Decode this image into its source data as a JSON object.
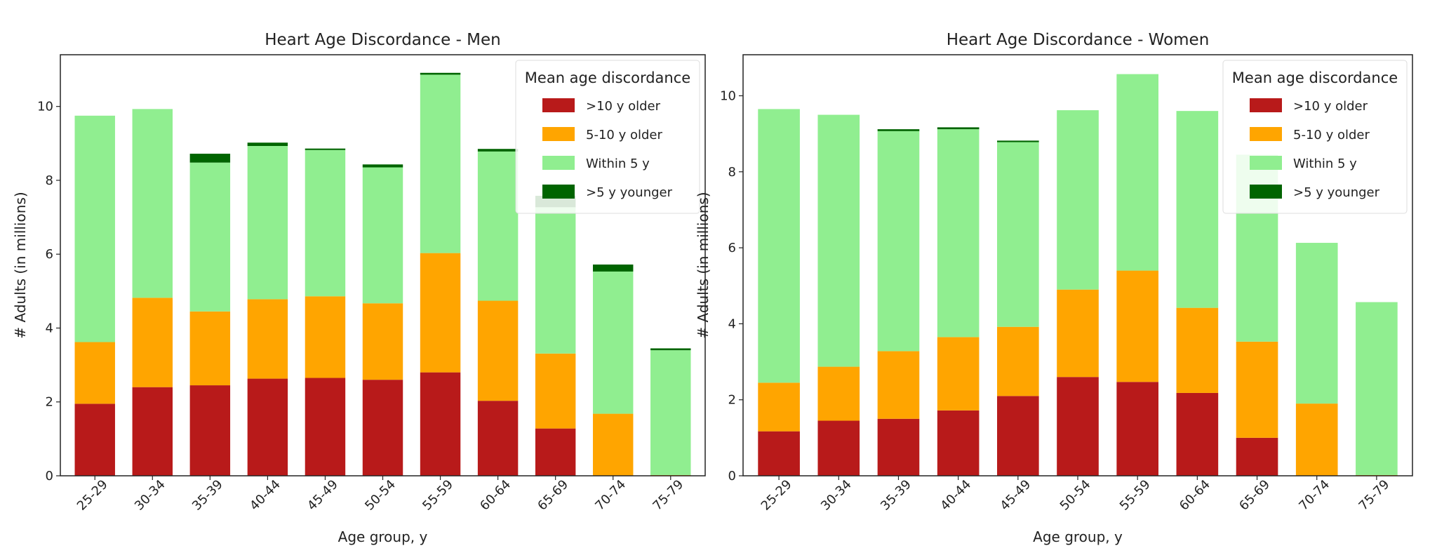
{
  "chart_data": [
    {
      "type": "bar",
      "stacked": true,
      "title": "Heart Age Discordance - Men",
      "xlabel": "Age group, y",
      "ylabel": "# Adults (in millions)",
      "ylim": [
        0,
        11.4
      ],
      "yticks": [
        0,
        2,
        4,
        6,
        8,
        10
      ],
      "grid": false,
      "legend": {
        "title": "Mean age discordance",
        "placement": "top-right"
      },
      "categories": [
        "25-29",
        "30-34",
        "35-39",
        "40-44",
        "45-49",
        "50-54",
        "55-59",
        "60-64",
        "65-69",
        "70-74",
        "75-79"
      ],
      "series": [
        {
          "name": ">10 y older",
          "color": "#b81a1a",
          "values": [
            1.95,
            2.4,
            2.45,
            2.63,
            2.65,
            2.6,
            2.8,
            2.03,
            1.28,
            0,
            0
          ]
        },
        {
          "name": "5-10 y older",
          "color": "#ffa500",
          "values": [
            1.67,
            2.42,
            2.0,
            2.15,
            2.21,
            2.07,
            3.23,
            2.71,
            2.03,
            1.68,
            0.02
          ]
        },
        {
          "name": "Within 5 y",
          "color": "#90ee90",
          "values": [
            6.13,
            5.11,
            4.03,
            4.15,
            3.96,
            3.68,
            4.83,
            4.04,
            3.96,
            3.85,
            3.38
          ]
        },
        {
          "name": ">5 y younger",
          "color": "#006400",
          "values": [
            0,
            0,
            0.24,
            0.09,
            0.04,
            0.08,
            0.05,
            0.07,
            0.31,
            0.19,
            0.05
          ]
        }
      ]
    },
    {
      "type": "bar",
      "stacked": true,
      "title": "Heart Age Discordance - Women",
      "xlabel": "Age group, y",
      "ylabel": "# Adults (in millions)",
      "ylim": [
        0,
        11.08
      ],
      "yticks": [
        0,
        2,
        4,
        6,
        8,
        10
      ],
      "grid": false,
      "legend": {
        "title": "Mean age discordance",
        "placement": "top-right"
      },
      "categories": [
        "25-29",
        "30-34",
        "35-39",
        "40-44",
        "45-49",
        "50-54",
        "55-59",
        "60-64",
        "65-69",
        "70-74",
        "75-79"
      ],
      "series": [
        {
          "name": ">10 y older",
          "color": "#b81a1a",
          "values": [
            1.17,
            1.45,
            1.5,
            1.72,
            2.1,
            2.6,
            2.47,
            2.18,
            1.0,
            0,
            0
          ]
        },
        {
          "name": "5-10 y older",
          "color": "#ffa500",
          "values": [
            1.28,
            1.42,
            1.78,
            1.93,
            1.82,
            2.3,
            2.93,
            2.24,
            2.53,
            1.9,
            0.02
          ]
        },
        {
          "name": "Within 5 y",
          "color": "#90ee90",
          "values": [
            7.2,
            6.63,
            5.79,
            5.47,
            4.86,
            4.72,
            5.17,
            5.18,
            4.92,
            4.23,
            4.55
          ]
        },
        {
          "name": ">5 y younger",
          "color": "#006400",
          "values": [
            0,
            0,
            0.05,
            0.05,
            0.04,
            0,
            0,
            0,
            0,
            0,
            0
          ]
        }
      ]
    }
  ]
}
